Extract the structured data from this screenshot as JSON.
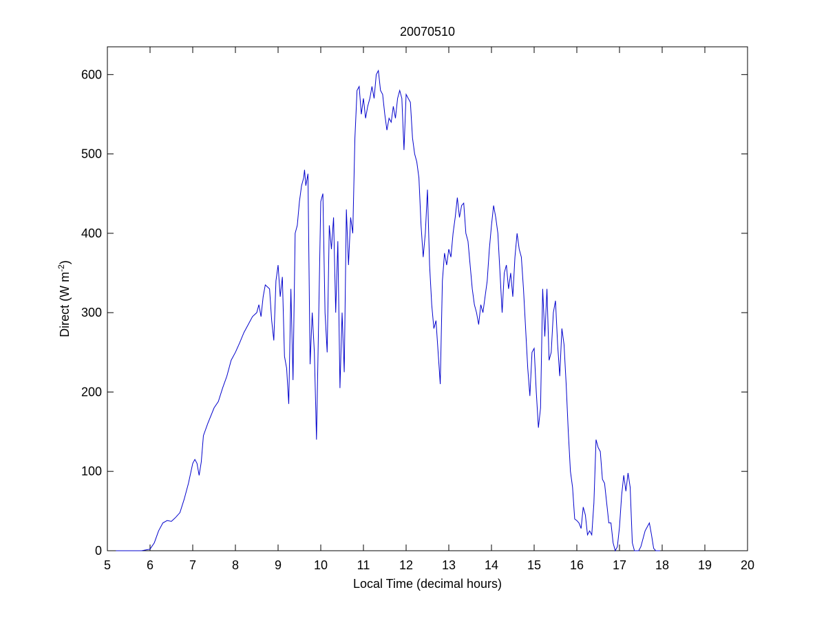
{
  "chart_data": {
    "type": "line",
    "title": "20070510",
    "xlabel": "Local Time (decimal hours)",
    "ylabel": {
      "text": "Direct (W m",
      "superscript": "-2",
      "suffix": ")"
    },
    "xlim": [
      5,
      20
    ],
    "xticks": [
      5,
      6,
      7,
      8,
      9,
      10,
      11,
      12,
      13,
      14,
      15,
      16,
      17,
      18,
      19,
      20
    ],
    "ylim": [
      0,
      635
    ],
    "yticks": [
      0,
      100,
      200,
      300,
      400,
      500,
      600
    ],
    "grid": false,
    "series": [
      {
        "name": "Direct",
        "color": "#0000cc",
        "x": [
          5.2,
          5.5,
          5.8,
          6.0,
          6.1,
          6.2,
          6.3,
          6.4,
          6.5,
          6.6,
          6.7,
          6.8,
          6.9,
          7.0,
          7.05,
          7.1,
          7.15,
          7.2,
          7.25,
          7.35,
          7.5,
          7.6,
          7.7,
          7.8,
          7.9,
          8.0,
          8.1,
          8.2,
          8.3,
          8.4,
          8.5,
          8.55,
          8.6,
          8.65,
          8.7,
          8.8,
          8.85,
          8.9,
          8.95,
          9.0,
          9.05,
          9.1,
          9.15,
          9.2,
          9.25,
          9.3,
          9.35,
          9.4,
          9.45,
          9.5,
          9.55,
          9.6,
          9.62,
          9.65,
          9.7,
          9.75,
          9.8,
          9.85,
          9.9,
          9.95,
          10.0,
          10.05,
          10.1,
          10.15,
          10.2,
          10.25,
          10.3,
          10.35,
          10.4,
          10.45,
          10.5,
          10.55,
          10.6,
          10.65,
          10.7,
          10.75,
          10.8,
          10.85,
          10.9,
          10.95,
          11.0,
          11.05,
          11.1,
          11.15,
          11.2,
          11.25,
          11.3,
          11.35,
          11.4,
          11.45,
          11.5,
          11.55,
          11.6,
          11.65,
          11.7,
          11.75,
          11.8,
          11.85,
          11.9,
          11.95,
          12.0,
          12.05,
          12.1,
          12.15,
          12.2,
          12.25,
          12.3,
          12.35,
          12.4,
          12.45,
          12.5,
          12.55,
          12.6,
          12.65,
          12.7,
          12.75,
          12.8,
          12.85,
          12.9,
          12.95,
          13.0,
          13.05,
          13.1,
          13.15,
          13.2,
          13.25,
          13.3,
          13.35,
          13.4,
          13.45,
          13.5,
          13.55,
          13.6,
          13.65,
          13.7,
          13.75,
          13.8,
          13.85,
          13.9,
          13.95,
          14.0,
          14.05,
          14.1,
          14.15,
          14.2,
          14.25,
          14.3,
          14.35,
          14.4,
          14.45,
          14.5,
          14.55,
          14.6,
          14.65,
          14.7,
          14.75,
          14.8,
          14.85,
          14.9,
          14.95,
          15.0,
          15.05,
          15.1,
          15.15,
          15.2,
          15.25,
          15.3,
          15.35,
          15.4,
          15.45,
          15.5,
          15.55,
          15.6,
          15.65,
          15.7,
          15.75,
          15.8,
          15.85,
          15.9,
          15.95,
          16.0,
          16.05,
          16.1,
          16.15,
          16.2,
          16.25,
          16.3,
          16.35,
          16.4,
          16.45,
          16.5,
          16.55,
          16.6,
          16.65,
          16.7,
          16.75,
          16.8,
          16.85,
          16.9,
          16.95,
          17.0,
          17.05,
          17.1,
          17.15,
          17.2,
          17.25,
          17.3,
          17.35,
          17.4,
          17.45,
          17.5,
          17.55,
          17.6,
          17.65,
          17.7,
          17.75,
          17.8,
          17.85,
          17.95
        ],
        "values": [
          0,
          0,
          0,
          2,
          10,
          25,
          35,
          38,
          37,
          42,
          48,
          65,
          85,
          110,
          115,
          110,
          95,
          112,
          145,
          160,
          180,
          188,
          205,
          220,
          240,
          250,
          262,
          275,
          285,
          295,
          300,
          310,
          295,
          320,
          335,
          330,
          290,
          265,
          340,
          360,
          320,
          345,
          245,
          230,
          185,
          330,
          215,
          400,
          410,
          440,
          460,
          470,
          480,
          460,
          475,
          235,
          300,
          250,
          140,
          290,
          440,
          450,
          300,
          250,
          410,
          380,
          420,
          300,
          390,
          205,
          300,
          225,
          430,
          360,
          420,
          400,
          520,
          580,
          585,
          550,
          570,
          545,
          560,
          570,
          585,
          570,
          600,
          605,
          580,
          575,
          550,
          530,
          545,
          540,
          560,
          545,
          570,
          580,
          570,
          505,
          575,
          570,
          565,
          520,
          500,
          490,
          470,
          410,
          370,
          400,
          455,
          360,
          310,
          280,
          290,
          250,
          210,
          340,
          375,
          360,
          380,
          370,
          400,
          420,
          445,
          420,
          435,
          438,
          400,
          390,
          360,
          330,
          310,
          300,
          285,
          310,
          300,
          320,
          340,
          380,
          410,
          435,
          420,
          400,
          350,
          300,
          350,
          360,
          330,
          350,
          320,
          370,
          400,
          380,
          370,
          330,
          280,
          230,
          195,
          250,
          255,
          200,
          155,
          180,
          330,
          270,
          330,
          240,
          250,
          300,
          315,
          260,
          220,
          280,
          260,
          210,
          150,
          100,
          80,
          40,
          38,
          35,
          28,
          55,
          45,
          20,
          25,
          20,
          60,
          140,
          130,
          125,
          90,
          85,
          60,
          35,
          35,
          10,
          0,
          5,
          30,
          70,
          95,
          75,
          98,
          80,
          10,
          0,
          0,
          0,
          5,
          15,
          25,
          30,
          35,
          20,
          3,
          0,
          0
        ]
      }
    ]
  }
}
